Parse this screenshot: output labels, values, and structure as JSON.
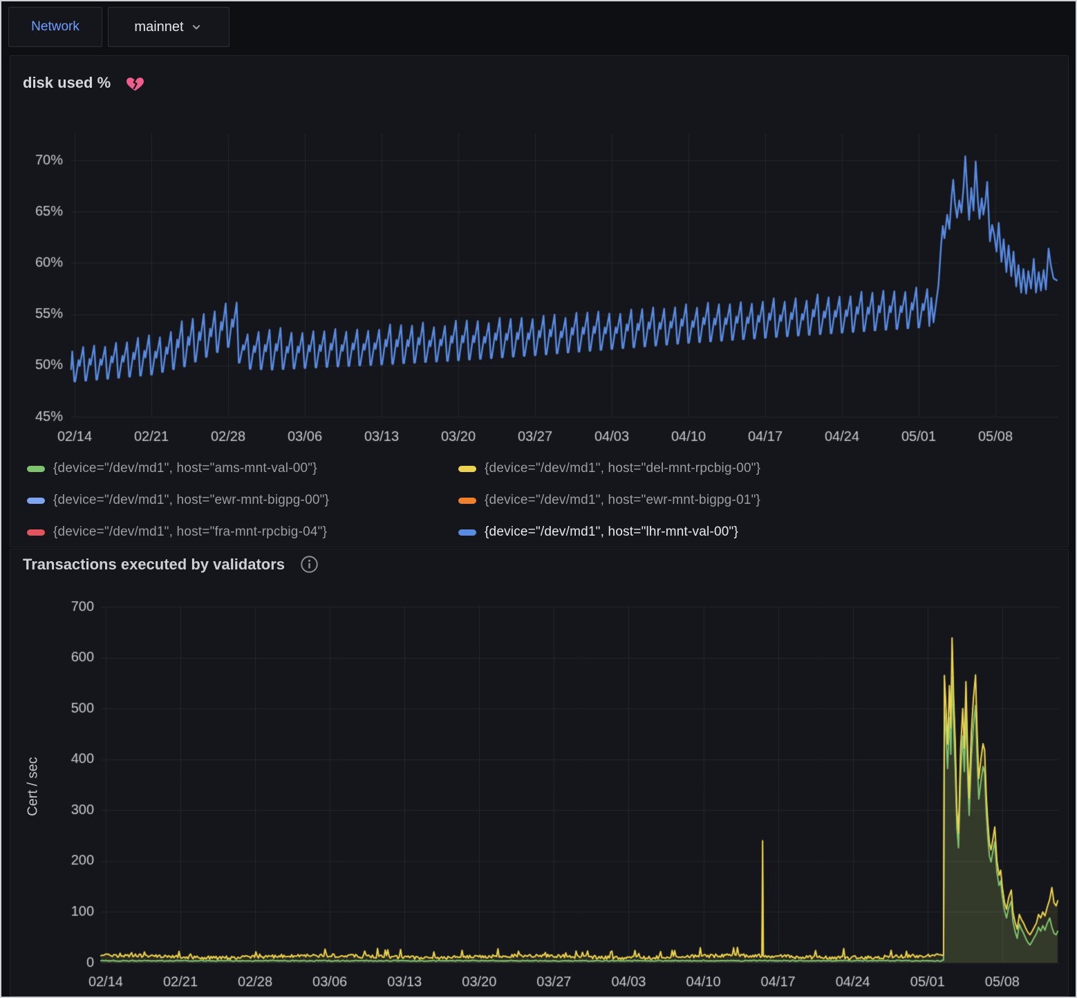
{
  "topbar": {
    "network_label": "Network",
    "network_value": "mainnet"
  },
  "panel_disk": {
    "title": "disk used %",
    "title_icon": "broken-heart",
    "legend": {
      "items": [
        {
          "label": "{device=\"/dev/md1\", host=\"ams-mnt-val-00\"}",
          "color": "#7ec36e",
          "dimmed": true
        },
        {
          "label": "{device=\"/dev/md1\", host=\"del-mnt-rpcbig-00\"}",
          "color": "#edd24f",
          "dimmed": true
        },
        {
          "label": "{device=\"/dev/md1\", host=\"ewr-mnt-bigpg-00\"}",
          "color": "#7ea6f0",
          "dimmed": true
        },
        {
          "label": "{device=\"/dev/md1\", host=\"ewr-mnt-bigpg-01\"}",
          "color": "#f08029",
          "dimmed": true
        },
        {
          "label": "{device=\"/dev/md1\", host=\"fra-mnt-rpcbig-04\"}",
          "color": "#e2555f",
          "dimmed": true
        },
        {
          "label": "{device=\"/dev/md1\", host=\"lhr-mnt-val-00\"}",
          "color": "#5a8be2",
          "dimmed": false
        }
      ]
    },
    "chart_data": {
      "type": "line",
      "visible_series": "{device=\"/dev/md1\", host=\"lhr-mnt-val-00\"}",
      "line_color": "#5a8be2",
      "x_tick_labels": [
        "02/14",
        "02/21",
        "02/28",
        "03/06",
        "03/13",
        "03/20",
        "03/27",
        "04/03",
        "04/10",
        "04/17",
        "04/24",
        "05/01",
        "05/08"
      ],
      "x_tick_days": [
        1,
        8,
        15,
        22,
        29,
        36,
        43,
        50,
        57,
        64,
        71,
        78,
        85
      ],
      "y_tick_labels": [
        "45%",
        "50%",
        "55%",
        "60%",
        "65%",
        "70%"
      ],
      "y_tick_values": [
        45,
        50,
        55,
        60,
        65,
        70
      ],
      "ylim": [
        45,
        72.5
      ],
      "xlim_days": [
        0.68,
        90.7
      ],
      "pattern": "daily sawtooth oscillation, slow upward trend, large excursion after 05/02",
      "sawtooth_envelope": [
        [
          0.6,
          48.4,
          51.6
        ],
        [
          4,
          48.7,
          52.1
        ],
        [
          8,
          49.1,
          52.7
        ],
        [
          11,
          49.9,
          54.2
        ],
        [
          14,
          51.3,
          55.8
        ],
        [
          15.4,
          52.0,
          56.5
        ],
        [
          16.2,
          49.7,
          53.2
        ],
        [
          19,
          49.6,
          53.3
        ],
        [
          23,
          49.8,
          53.4
        ],
        [
          29,
          50.1,
          53.7
        ],
        [
          36,
          50.5,
          54.1
        ],
        [
          43,
          51.0,
          54.6
        ],
        [
          50,
          51.6,
          55.2
        ],
        [
          57,
          52.2,
          55.8
        ],
        [
          64,
          52.7,
          56.3
        ],
        [
          71,
          53.2,
          56.8
        ],
        [
          78,
          53.7,
          57.3
        ],
        [
          79.6,
          53.9,
          57.4
        ]
      ],
      "sawtooth_end_day": 79,
      "peak_points": [
        [
          79.15,
          56.6
        ],
        [
          79.35,
          54.2
        ],
        [
          79.8,
          57.8
        ],
        [
          80.05,
          61.8
        ],
        [
          80.2,
          63.6
        ],
        [
          80.35,
          62.4
        ],
        [
          80.6,
          64.7
        ],
        [
          80.8,
          63.3
        ],
        [
          81.0,
          66.4
        ],
        [
          81.15,
          68.1
        ],
        [
          81.3,
          65.9
        ],
        [
          81.5,
          64.4
        ],
        [
          81.7,
          66.1
        ],
        [
          81.9,
          64.9
        ],
        [
          82.1,
          67.5
        ],
        [
          82.25,
          70.4
        ],
        [
          82.45,
          66.6
        ],
        [
          82.6,
          64.2
        ],
        [
          82.8,
          67.3
        ],
        [
          83.0,
          65.1
        ],
        [
          83.2,
          69.9
        ],
        [
          83.4,
          66.1
        ],
        [
          83.55,
          64.3
        ],
        [
          83.75,
          66.3
        ],
        [
          83.9,
          64.7
        ],
        [
          84.1,
          66.1
        ],
        [
          84.25,
          67.9
        ],
        [
          84.5,
          62.1
        ],
        [
          84.7,
          63.7
        ],
        [
          84.9,
          62.7
        ],
        [
          85.1,
          61.1
        ],
        [
          85.3,
          63.9
        ],
        [
          85.55,
          60.1
        ],
        [
          85.75,
          62.3
        ],
        [
          86.0,
          59.1
        ],
        [
          86.2,
          61.7
        ],
        [
          86.45,
          58.7
        ],
        [
          86.65,
          61.1
        ],
        [
          86.9,
          57.7
        ],
        [
          87.1,
          59.8
        ],
        [
          87.35,
          57.1
        ],
        [
          87.55,
          59.4
        ],
        [
          87.8,
          57.0
        ],
        [
          88.0,
          59.2
        ],
        [
          88.25,
          57.5
        ],
        [
          88.5,
          60.4
        ],
        [
          88.7,
          57.1
        ],
        [
          88.95,
          59.1
        ],
        [
          89.15,
          57.3
        ],
        [
          89.4,
          59.3
        ],
        [
          89.6,
          57.4
        ],
        [
          89.85,
          61.4
        ],
        [
          90.05,
          59.8
        ],
        [
          90.3,
          58.5
        ],
        [
          90.6,
          58.3
        ]
      ]
    }
  },
  "panel_tx": {
    "title": "Transactions executed by validators",
    "title_icon": "info-circle",
    "ylabel": "Cert / sec",
    "chart_data": {
      "type": "line",
      "x_tick_labels": [
        "02/14",
        "02/21",
        "02/28",
        "03/06",
        "03/13",
        "03/20",
        "03/27",
        "04/03",
        "04/10",
        "04/17",
        "04/24",
        "05/01",
        "05/08"
      ],
      "x_tick_days": [
        1,
        8,
        15,
        22,
        29,
        36,
        43,
        50,
        57,
        64,
        71,
        78,
        85
      ],
      "y_tick_labels": [
        "0",
        "100",
        "200",
        "300",
        "400",
        "500",
        "600",
        "700"
      ],
      "y_tick_values": [
        0,
        100,
        200,
        300,
        400,
        500,
        600,
        700
      ],
      "ylim": [
        0,
        700
      ],
      "xlim_days": [
        0.55,
        90.4
      ],
      "fill_opacity": 0.11,
      "series": [
        {
          "name": "tx-rate-yellow",
          "color": "#edd24f",
          "baseline_mean": 12,
          "baseline_noise": 3.5,
          "baseline_floor": 6,
          "baseline_end_day": 79.5,
          "seed": 1,
          "bumps": true,
          "spikes": [
            [
              62.55,
              240
            ]
          ],
          "keypoints": [
            [
              79.5,
              16
            ],
            [
              79.58,
              565
            ],
            [
              79.72,
              505
            ],
            [
              79.88,
              430
            ],
            [
              80.05,
              545
            ],
            [
              80.18,
              462
            ],
            [
              80.3,
              639
            ],
            [
              80.45,
              520
            ],
            [
              80.6,
              432
            ],
            [
              80.75,
              300
            ],
            [
              80.9,
              255
            ],
            [
              81.1,
              420
            ],
            [
              81.3,
              500
            ],
            [
              81.45,
              422
            ],
            [
              81.6,
              553
            ],
            [
              81.75,
              420
            ],
            [
              81.9,
              324
            ],
            [
              82.1,
              452
            ],
            [
              82.3,
              520
            ],
            [
              82.5,
              566
            ],
            [
              82.65,
              452
            ],
            [
              82.8,
              362
            ],
            [
              83.0,
              400
            ],
            [
              83.2,
              431
            ],
            [
              83.35,
              418
            ],
            [
              83.5,
              330
            ],
            [
              83.65,
              276
            ],
            [
              83.8,
              235
            ],
            [
              83.95,
              222
            ],
            [
              84.1,
              240
            ],
            [
              84.3,
              267
            ],
            [
              84.5,
              200
            ],
            [
              84.7,
              172
            ],
            [
              84.85,
              182
            ],
            [
              85.0,
              150
            ],
            [
              85.2,
              120
            ],
            [
              85.4,
              105
            ],
            [
              85.6,
              128
            ],
            [
              85.85,
              143
            ],
            [
              86.0,
              100
            ],
            [
              86.2,
              80
            ],
            [
              86.4,
              66
            ],
            [
              86.6,
              95
            ],
            [
              86.8,
              85
            ],
            [
              87.0,
              78
            ],
            [
              87.2,
              68
            ],
            [
              87.4,
              60
            ],
            [
              87.6,
              55
            ],
            [
              87.8,
              62
            ],
            [
              88.0,
              70
            ],
            [
              88.2,
              78
            ],
            [
              88.4,
              95
            ],
            [
              88.6,
              88
            ],
            [
              88.8,
              100
            ],
            [
              89.0,
              92
            ],
            [
              89.2,
              108
            ],
            [
              89.45,
              125
            ],
            [
              89.65,
              148
            ],
            [
              89.85,
              118
            ],
            [
              90.05,
              112
            ],
            [
              90.2,
              122
            ]
          ]
        },
        {
          "name": "tx-rate-green",
          "color": "#7ec36e",
          "baseline_mean": 4,
          "baseline_noise": 1.1,
          "baseline_floor": 2.4,
          "baseline_end_day": 79.5,
          "seed": 2,
          "bumps": false,
          "spikes": [],
          "keypoints": [
            [
              79.5,
              5
            ],
            [
              79.58,
              500
            ],
            [
              79.72,
              452
            ],
            [
              79.88,
              382
            ],
            [
              80.05,
              482
            ],
            [
              80.18,
              410
            ],
            [
              80.3,
              562
            ],
            [
              80.45,
              462
            ],
            [
              80.6,
              380
            ],
            [
              80.75,
              266
            ],
            [
              80.9,
              226
            ],
            [
              81.1,
              372
            ],
            [
              81.3,
              446
            ],
            [
              81.45,
              376
            ],
            [
              81.6,
              492
            ],
            [
              81.75,
              376
            ],
            [
              81.9,
              290
            ],
            [
              82.1,
              402
            ],
            [
              82.3,
              466
            ],
            [
              82.5,
              506
            ],
            [
              82.65,
              402
            ],
            [
              82.8,
              322
            ],
            [
              83.0,
              356
            ],
            [
              83.2,
              386
            ],
            [
              83.35,
              374
            ],
            [
              83.5,
              296
            ],
            [
              83.65,
              246
            ],
            [
              83.8,
              210
            ],
            [
              83.95,
              198
            ],
            [
              84.1,
              216
            ],
            [
              84.3,
              238
            ],
            [
              84.5,
              178
            ],
            [
              84.7,
              152
            ],
            [
              84.85,
              161
            ],
            [
              85.0,
              132
            ],
            [
              85.2,
              104
            ],
            [
              85.4,
              88
            ],
            [
              85.6,
              108
            ],
            [
              85.85,
              121
            ],
            [
              86.0,
              82
            ],
            [
              86.2,
              62
            ],
            [
              86.4,
              48
            ],
            [
              86.6,
              76
            ],
            [
              86.8,
              66
            ],
            [
              87.0,
              58
            ],
            [
              87.2,
              48
            ],
            [
              87.4,
              40
            ],
            [
              87.6,
              35
            ],
            [
              87.8,
              42
            ],
            [
              88.0,
              50
            ],
            [
              88.2,
              57
            ],
            [
              88.4,
              70
            ],
            [
              88.6,
              62
            ],
            [
              88.8,
              73
            ],
            [
              89.0,
              64
            ],
            [
              89.2,
              77
            ],
            [
              89.45,
              88
            ],
            [
              89.65,
              70
            ],
            [
              89.85,
              58
            ],
            [
              90.05,
              55
            ],
            [
              90.2,
              62
            ]
          ]
        }
      ]
    }
  },
  "colors": {
    "page_bg": "#0e0f13",
    "panel_bg": "#14161b",
    "grid": "rgba(205,210,230,0.08)",
    "tick_text": "#c9cad0",
    "accent_blue": "#6e9fff",
    "heart_pink": "#ee5d8c"
  }
}
